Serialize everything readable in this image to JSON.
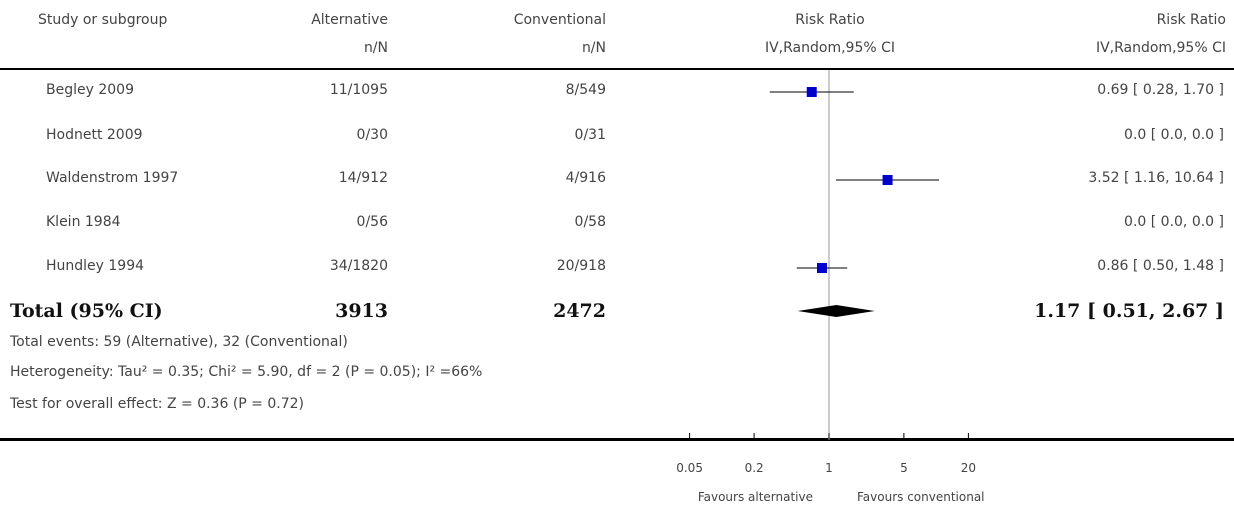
{
  "header": {
    "study_col": "Study or subgroup",
    "alt_col": "Alternative",
    "alt_sub": "n/N",
    "conv_col": "Conventional",
    "conv_sub": "n/N",
    "plot_col": "Risk Ratio",
    "plot_sub": "IV,Random,95% CI",
    "rr_col": "Risk Ratio",
    "rr_sub": "IV,Random,95% CI"
  },
  "chart_data": {
    "type": "forest",
    "scale": "log",
    "null_value": 1,
    "xticks": [
      0.05,
      0.2,
      1,
      5,
      20
    ],
    "xtick_labels": [
      "0.05",
      "0.2",
      "1",
      "5",
      "20"
    ],
    "favours_left": "Favours alternative",
    "favours_right": "Favours conventional",
    "marker_color": "#0000cc",
    "studies": [
      {
        "name": "Begley 2009",
        "alt": "11/1095",
        "conv": "8/549",
        "rr": 0.69,
        "lo": 0.28,
        "hi": 1.7,
        "rr_text": "0.69 [ 0.28, 1.70 ]",
        "plotted": true
      },
      {
        "name": "Hodnett 2009",
        "alt": "0/30",
        "conv": "0/31",
        "rr": null,
        "lo": null,
        "hi": null,
        "rr_text": "0.0 [ 0.0, 0.0 ]",
        "plotted": false
      },
      {
        "name": "Waldenstrom 1997",
        "alt": "14/912",
        "conv": "4/916",
        "rr": 3.52,
        "lo": 1.16,
        "hi": 10.64,
        "rr_text": "3.52 [ 1.16, 10.64 ]",
        "plotted": true
      },
      {
        "name": "Klein 1984",
        "alt": "0/56",
        "conv": "0/58",
        "rr": null,
        "lo": null,
        "hi": null,
        "rr_text": "0.0 [ 0.0, 0.0 ]",
        "plotted": false
      },
      {
        "name": "Hundley 1994",
        "alt": "34/1820",
        "conv": "20/918",
        "rr": 0.86,
        "lo": 0.5,
        "hi": 1.48,
        "rr_text": "0.86 [ 0.50, 1.48 ]",
        "plotted": true
      }
    ],
    "total": {
      "name": "Total (95% CI)",
      "alt": "3913",
      "conv": "2472",
      "rr": 1.17,
      "lo": 0.51,
      "hi": 2.67,
      "rr_text": "1.17 [ 0.51, 2.67 ]"
    }
  },
  "notes": {
    "events": "Total events: 59 (Alternative), 32 (Conventional)",
    "heterogeneity": "Heterogeneity: Tau² = 0.35; Chi² = 5.90, df = 2 (P = 0.05); I² =66%",
    "overall": "Test for overall effect: Z = 0.36 (P = 0.72)"
  }
}
